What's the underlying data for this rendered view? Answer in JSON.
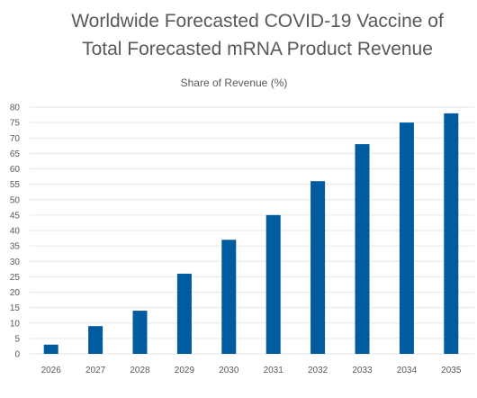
{
  "chart_data": {
    "type": "bar",
    "title_line1": "Worldwide Forecasted COVID-19 Vaccine of",
    "title_line2": "Total Forecasted mRNA Product Revenue",
    "subtitle": "Share of Revenue (%)",
    "categories": [
      "2026",
      "2027",
      "2028",
      "2029",
      "2030",
      "2031",
      "2032",
      "2033",
      "2034",
      "2035"
    ],
    "series": [
      {
        "values": [
          3,
          9,
          14,
          26,
          37,
          45,
          56,
          68,
          75,
          78
        ]
      }
    ],
    "ylim": [
      0,
      80
    ],
    "yticks": [
      0,
      5,
      10,
      15,
      20,
      25,
      30,
      35,
      40,
      45,
      50,
      55,
      60,
      65,
      70,
      75,
      80
    ],
    "grid": true,
    "legend": "none",
    "bar_color": "#005b9f",
    "grid_color": "#e6e6e6"
  }
}
